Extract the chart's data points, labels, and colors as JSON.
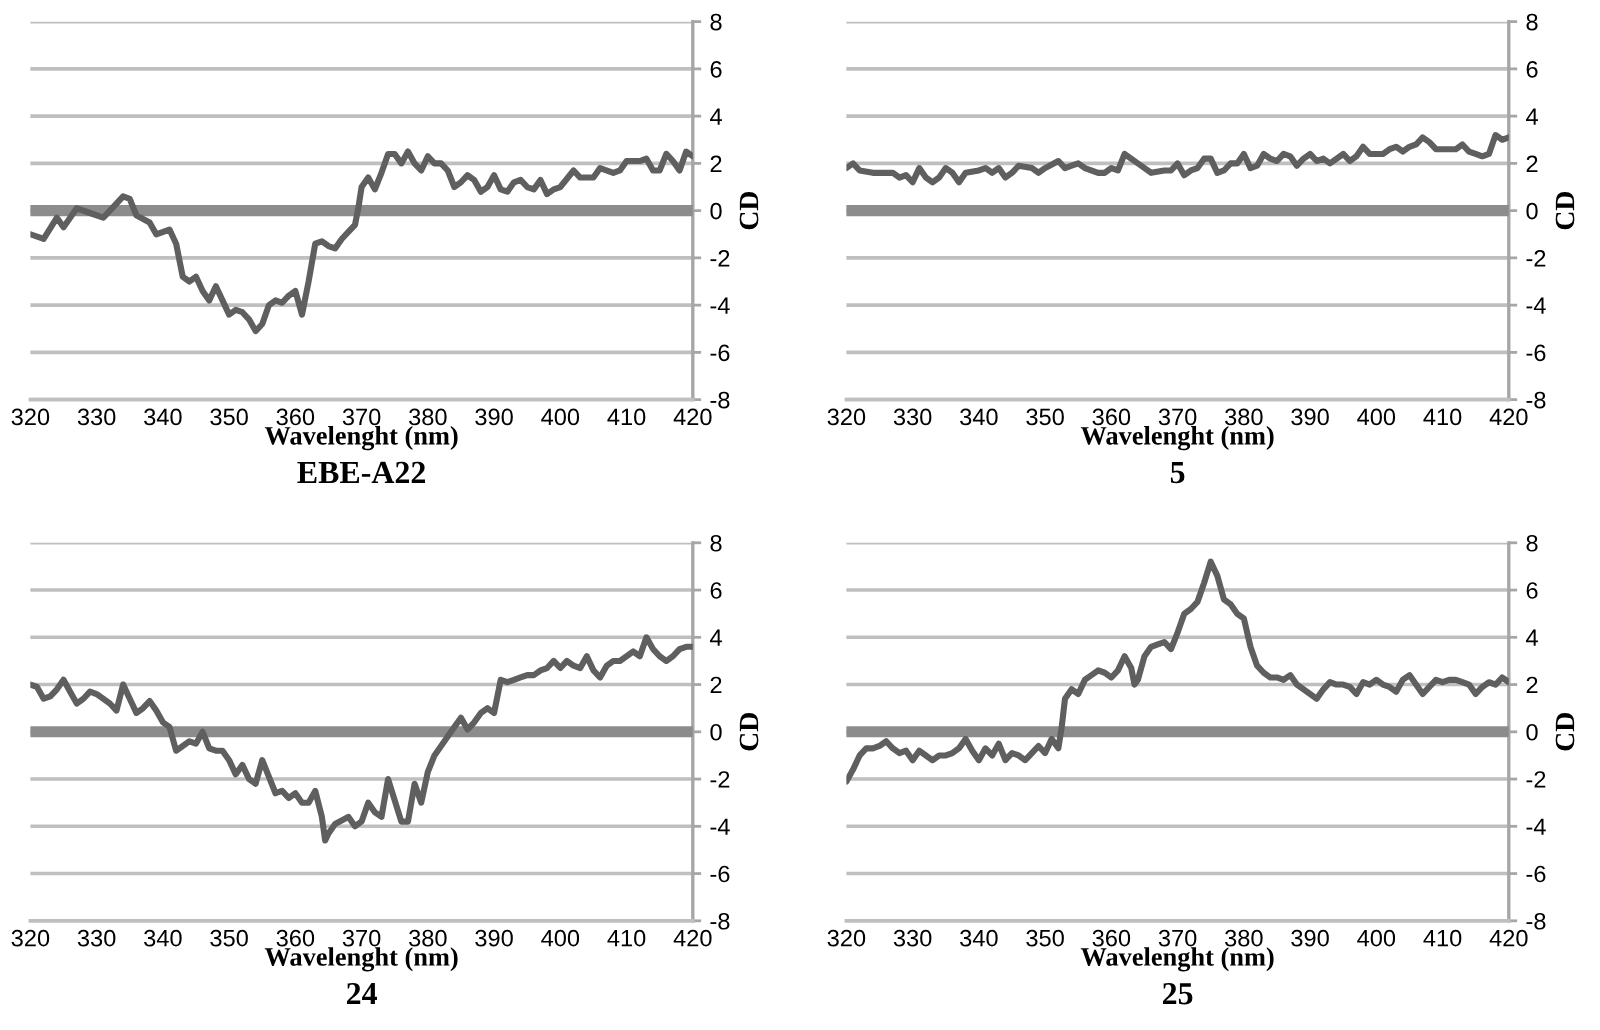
{
  "chart_data": [
    {
      "type": "line",
      "title": "EBE-A22",
      "xlabel": "Wavelenght (nm)",
      "ylabel": "CD",
      "color": "#5f5f5f",
      "xlim": [
        320,
        420
      ],
      "xticks": [
        320,
        330,
        340,
        350,
        360,
        370,
        380,
        390,
        400,
        410,
        420
      ],
      "ylim": [
        -8,
        8
      ],
      "yticks": [
        -8,
        -6,
        -4,
        -2,
        0,
        2,
        4,
        6,
        8
      ],
      "grid": "y",
      "ref_lines": [
        {
          "axis": "y",
          "value": 0,
          "color": "#8c8c8c"
        }
      ],
      "x": [
        320,
        322,
        324,
        325,
        327,
        329,
        331,
        332,
        334,
        335,
        336,
        338,
        339,
        341,
        342,
        343,
        344,
        345,
        346,
        347,
        348,
        349,
        350,
        351,
        352,
        353,
        354,
        355,
        356,
        357,
        358,
        359,
        360,
        361,
        362,
        363,
        364,
        365,
        366,
        367,
        368,
        369,
        369.5,
        370,
        371,
        372,
        373,
        374,
        375,
        376,
        377,
        378,
        379,
        380,
        381,
        382,
        383,
        384,
        385,
        386,
        387,
        388,
        389,
        390,
        391,
        392,
        393,
        394,
        395,
        396,
        397,
        398,
        399,
        400,
        402,
        403,
        405,
        406,
        408,
        409,
        410,
        412,
        413,
        414,
        415,
        416,
        417,
        418,
        419,
        420
      ],
      "values": [
        -1.0,
        -1.2,
        -0.3,
        -0.7,
        0.1,
        -0.1,
        -0.3,
        0.0,
        0.6,
        0.5,
        -0.2,
        -0.5,
        -1.0,
        -0.8,
        -1.4,
        -2.8,
        -3.0,
        -2.8,
        -3.4,
        -3.8,
        -3.2,
        -3.8,
        -4.4,
        -4.2,
        -4.3,
        -4.6,
        -5.1,
        -4.8,
        -4.0,
        -3.8,
        -3.9,
        -3.6,
        -3.4,
        -4.4,
        -3.0,
        -1.4,
        -1.3,
        -1.5,
        -1.6,
        -1.2,
        -0.9,
        -0.6,
        0.1,
        1.0,
        1.4,
        0.9,
        1.6,
        2.4,
        2.4,
        2.0,
        2.5,
        2.0,
        1.7,
        2.3,
        2.0,
        2.0,
        1.7,
        1.0,
        1.2,
        1.5,
        1.3,
        0.8,
        1.0,
        1.5,
        0.9,
        0.8,
        1.2,
        1.3,
        1.0,
        0.9,
        1.3,
        0.7,
        0.9,
        1.0,
        1.7,
        1.4,
        1.4,
        1.8,
        1.6,
        1.7,
        2.1,
        2.1,
        2.2,
        1.7,
        1.7,
        2.4,
        2.1,
        1.7,
        2.5,
        2.3
      ]
    },
    {
      "type": "line",
      "title": "5",
      "xlabel": "Wavelenght (nm)",
      "ylabel": "CD",
      "color": "#5f5f5f",
      "xlim": [
        320,
        420
      ],
      "xticks": [
        320,
        330,
        340,
        350,
        360,
        370,
        380,
        390,
        400,
        410,
        420
      ],
      "ylim": [
        -8,
        8
      ],
      "yticks": [
        -8,
        -6,
        -4,
        -2,
        0,
        2,
        4,
        6,
        8
      ],
      "grid": "y",
      "ref_lines": [
        {
          "axis": "y",
          "value": 0,
          "color": "#8c8c8c"
        }
      ],
      "x": [
        320,
        321,
        322,
        324,
        326,
        327,
        328,
        329,
        330,
        331,
        332,
        333,
        334,
        335,
        336,
        337,
        338,
        340,
        341,
        342,
        343,
        344,
        345,
        346,
        348,
        349,
        350,
        352,
        353,
        354,
        355,
        356,
        358,
        359,
        360,
        361,
        362,
        363,
        364,
        366,
        368,
        369,
        370,
        371,
        372,
        373,
        374,
        375,
        376,
        377,
        378,
        379,
        380,
        381,
        382,
        383,
        384,
        385,
        386,
        387,
        388,
        389,
        390,
        391,
        392,
        393,
        394,
        395,
        396,
        397,
        398,
        399,
        400,
        401,
        402,
        403,
        404,
        405,
        406,
        407,
        408,
        409,
        410,
        412,
        413,
        414,
        415,
        416,
        417,
        418,
        419,
        420
      ],
      "values": [
        1.8,
        2.0,
        1.7,
        1.6,
        1.6,
        1.6,
        1.4,
        1.5,
        1.2,
        1.8,
        1.4,
        1.2,
        1.4,
        1.8,
        1.6,
        1.2,
        1.6,
        1.7,
        1.8,
        1.6,
        1.8,
        1.4,
        1.6,
        1.9,
        1.8,
        1.6,
        1.8,
        2.1,
        1.8,
        1.9,
        2.0,
        1.8,
        1.6,
        1.6,
        1.8,
        1.7,
        2.4,
        2.2,
        2.0,
        1.6,
        1.7,
        1.7,
        2.0,
        1.5,
        1.7,
        1.8,
        2.2,
        2.2,
        1.6,
        1.7,
        2.0,
        2.0,
        2.4,
        1.8,
        1.9,
        2.4,
        2.2,
        2.1,
        2.4,
        2.3,
        1.9,
        2.2,
        2.4,
        2.1,
        2.2,
        2.0,
        2.2,
        2.4,
        2.1,
        2.3,
        2.7,
        2.4,
        2.4,
        2.4,
        2.6,
        2.7,
        2.5,
        2.7,
        2.8,
        3.1,
        2.9,
        2.6,
        2.6,
        2.6,
        2.8,
        2.5,
        2.4,
        2.3,
        2.4,
        3.2,
        3.0,
        3.1
      ]
    },
    {
      "type": "line",
      "title": "24",
      "xlabel": "Wavelenght (nm)",
      "ylabel": "CD",
      "color": "#5f5f5f",
      "xlim": [
        320,
        420
      ],
      "xticks": [
        320,
        330,
        340,
        350,
        360,
        370,
        380,
        390,
        400,
        410,
        420
      ],
      "ylim": [
        -8,
        8
      ],
      "yticks": [
        -8,
        -6,
        -4,
        -2,
        0,
        2,
        4,
        6,
        8
      ],
      "grid": "y",
      "ref_lines": [
        {
          "axis": "y",
          "value": 0,
          "color": "#8c8c8c"
        }
      ],
      "x": [
        320,
        321,
        322,
        323,
        324,
        325,
        326,
        327,
        328,
        329,
        330,
        331,
        332,
        333,
        334,
        335,
        336,
        337,
        338,
        339,
        340,
        341,
        342,
        343,
        344,
        345,
        346,
        347,
        348,
        349,
        350,
        351,
        352,
        353,
        354,
        355,
        356,
        357,
        358,
        359,
        360,
        361,
        362,
        363,
        364,
        364.5,
        365,
        366,
        368,
        369,
        370,
        371,
        372,
        373,
        374,
        375,
        376,
        377,
        378,
        379,
        380,
        381,
        382,
        383,
        384,
        385,
        386,
        387,
        388,
        389,
        390,
        391,
        392,
        393,
        394,
        395,
        396,
        397,
        398,
        399,
        400,
        401,
        402,
        403,
        404,
        405,
        406,
        407,
        408,
        409,
        410,
        411,
        412,
        413,
        414,
        415,
        416,
        417,
        418,
        419,
        420
      ],
      "values": [
        2.0,
        1.9,
        1.4,
        1.5,
        1.8,
        2.2,
        1.7,
        1.2,
        1.4,
        1.7,
        1.6,
        1.4,
        1.2,
        0.9,
        2.0,
        1.4,
        0.8,
        1.0,
        1.3,
        0.9,
        0.4,
        0.2,
        -0.8,
        -0.6,
        -0.4,
        -0.5,
        0.0,
        -0.7,
        -0.8,
        -0.8,
        -1.2,
        -1.8,
        -1.4,
        -2.0,
        -2.2,
        -1.2,
        -1.9,
        -2.6,
        -2.5,
        -2.8,
        -2.6,
        -3.0,
        -3.0,
        -2.5,
        -3.6,
        -4.6,
        -4.3,
        -3.9,
        -3.6,
        -4.0,
        -3.8,
        -3.0,
        -3.4,
        -3.6,
        -2.0,
        -2.9,
        -3.8,
        -3.8,
        -2.2,
        -3.0,
        -1.7,
        -1.0,
        -0.6,
        -0.2,
        0.2,
        0.6,
        0.1,
        0.4,
        0.8,
        1.0,
        0.8,
        2.2,
        2.1,
        2.2,
        2.3,
        2.4,
        2.4,
        2.6,
        2.7,
        3.0,
        2.7,
        3.0,
        2.8,
        2.7,
        3.2,
        2.6,
        2.3,
        2.8,
        3.0,
        3.0,
        3.2,
        3.4,
        3.2,
        4.0,
        3.5,
        3.2,
        3.0,
        3.2,
        3.5,
        3.6,
        3.6
      ]
    },
    {
      "type": "line",
      "title": "25",
      "xlabel": "Wavelenght (nm)",
      "ylabel": "CD",
      "color": "#5f5f5f",
      "xlim": [
        320,
        420
      ],
      "xticks": [
        320,
        330,
        340,
        350,
        360,
        370,
        380,
        390,
        400,
        410,
        420
      ],
      "ylim": [
        -8,
        8
      ],
      "yticks": [
        -8,
        -6,
        -4,
        -2,
        0,
        2,
        4,
        6,
        8
      ],
      "grid": "y",
      "ref_lines": [
        {
          "axis": "y",
          "value": 0,
          "color": "#8c8c8c"
        }
      ],
      "x": [
        320,
        321,
        322,
        323,
        324,
        325,
        326,
        327,
        328,
        329,
        330,
        331,
        332,
        333,
        334,
        335,
        336,
        337,
        338,
        339,
        340,
        341,
        342,
        343,
        344,
        345,
        346,
        347,
        348,
        349,
        350,
        351,
        352,
        352.5,
        353,
        354,
        355,
        356,
        357,
        358,
        359,
        360,
        361,
        362,
        363,
        363.5,
        364,
        365,
        366,
        367,
        368,
        369,
        370,
        371,
        372,
        373,
        374,
        375,
        376,
        377,
        378,
        379,
        380,
        381,
        382,
        383,
        384,
        385,
        386,
        387,
        388,
        389,
        390,
        391,
        392,
        393,
        394,
        395,
        396,
        397,
        398,
        399,
        400,
        401,
        402,
        403,
        404,
        405,
        406,
        407,
        408,
        409,
        410,
        411,
        412,
        413,
        414,
        415,
        416,
        417,
        418,
        419,
        420
      ],
      "values": [
        -2.1,
        -1.6,
        -1.0,
        -0.7,
        -0.7,
        -0.6,
        -0.4,
        -0.7,
        -0.9,
        -0.8,
        -1.2,
        -0.8,
        -1.0,
        -1.2,
        -1.0,
        -1.0,
        -0.9,
        -0.7,
        -0.3,
        -0.8,
        -1.2,
        -0.7,
        -1.0,
        -0.5,
        -1.2,
        -0.9,
        -1.0,
        -1.2,
        -0.9,
        -0.6,
        -0.9,
        -0.3,
        -0.7,
        0.2,
        1.4,
        1.8,
        1.6,
        2.2,
        2.4,
        2.6,
        2.5,
        2.3,
        2.6,
        3.2,
        2.7,
        2.0,
        2.2,
        3.2,
        3.6,
        3.7,
        3.8,
        3.5,
        4.2,
        5.0,
        5.2,
        5.5,
        6.3,
        7.2,
        6.6,
        5.6,
        5.4,
        5.0,
        4.8,
        3.6,
        2.8,
        2.5,
        2.3,
        2.3,
        2.2,
        2.4,
        2.0,
        1.8,
        1.6,
        1.4,
        1.8,
        2.1,
        2.0,
        2.0,
        1.9,
        1.6,
        2.1,
        2.0,
        2.2,
        2.0,
        1.9,
        1.7,
        2.2,
        2.4,
        2.0,
        1.6,
        1.9,
        2.2,
        2.1,
        2.2,
        2.2,
        2.1,
        2.0,
        1.6,
        1.9,
        2.1,
        2.0,
        2.3,
        2.1
      ]
    }
  ]
}
